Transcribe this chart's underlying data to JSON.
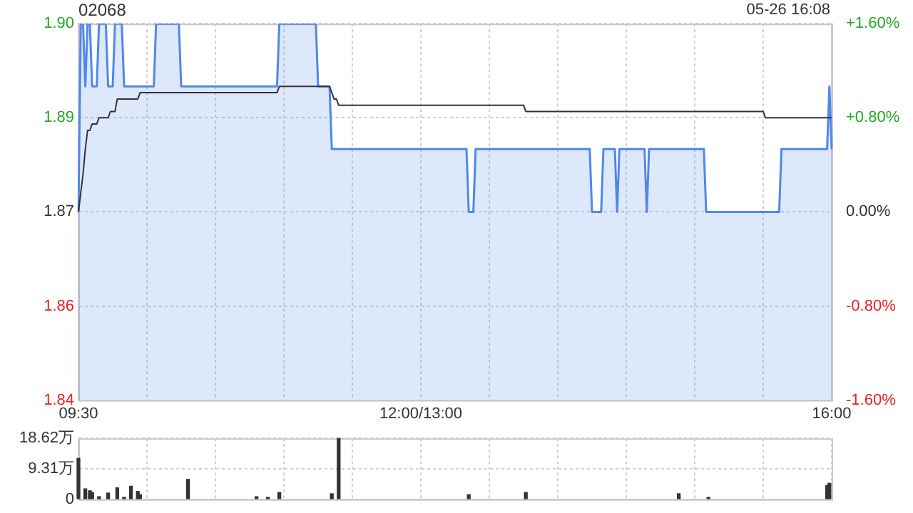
{
  "chart_data": [
    {
      "type": "area",
      "title": "02068",
      "subtitle": "05-26 16:08",
      "categories": [
        "09:30",
        null,
        null,
        null,
        null,
        null,
        null,
        null,
        null,
        null,
        null,
        null,
        null,
        null,
        null,
        null,
        null,
        null,
        null,
        null,
        null,
        null,
        null,
        null,
        null,
        null,
        null,
        null,
        null,
        null,
        null,
        null,
        null,
        null,
        null,
        null,
        null,
        null,
        null,
        null,
        null,
        null,
        null,
        null,
        null,
        null,
        null,
        null,
        null,
        null,
        null,
        null,
        null,
        null,
        null,
        null,
        null,
        null,
        null,
        null,
        null,
        null,
        null,
        null,
        null,
        null,
        null,
        null,
        null,
        null,
        null,
        null,
        null,
        null,
        null,
        null,
        null,
        null,
        null,
        null,
        null,
        null,
        null,
        null,
        null,
        null,
        null,
        null,
        null,
        null,
        null,
        null,
        null,
        null,
        null,
        null,
        null,
        null,
        null,
        null,
        null,
        null,
        null,
        null,
        null,
        null,
        null,
        null,
        null,
        null,
        null,
        null,
        null,
        null,
        null,
        null,
        null,
        null,
        null,
        null,
        null,
        null,
        null,
        null,
        null,
        null,
        null,
        null,
        null,
        null,
        null,
        null,
        null,
        null,
        null,
        null,
        null,
        null,
        null,
        null,
        null,
        null,
        null,
        null,
        null,
        null,
        null,
        null,
        null,
        null,
        "12:00/13:00",
        null,
        null,
        null,
        null,
        null,
        null,
        null,
        null,
        null,
        null,
        null,
        null,
        null,
        null,
        null,
        null,
        null,
        null,
        null,
        null,
        null,
        null,
        null,
        null,
        null,
        null,
        null,
        null,
        null,
        null,
        null,
        null,
        null,
        null,
        null,
        null,
        null,
        null,
        null,
        null,
        null,
        null,
        null,
        null,
        null,
        null,
        null,
        null,
        null,
        null,
        null,
        null,
        null,
        null,
        null,
        null,
        null,
        null,
        null,
        null,
        null,
        null,
        null,
        null,
        null,
        null,
        null,
        null,
        null,
        null,
        null,
        null,
        null,
        null,
        null,
        null,
        null,
        null,
        null,
        null,
        null,
        null,
        null,
        null,
        null,
        null,
        null,
        null,
        null,
        null,
        null,
        null,
        null,
        null,
        null,
        null,
        null,
        null,
        null,
        null,
        null,
        null,
        null,
        null,
        null,
        null,
        null,
        null,
        null,
        null,
        null,
        null,
        null,
        null,
        null,
        null,
        null,
        null,
        null,
        null,
        null,
        null,
        null,
        null,
        null,
        null,
        null,
        null,
        null,
        null,
        null,
        null,
        null,
        null,
        null,
        null,
        null,
        null,
        null,
        null,
        null,
        null,
        null,
        null,
        null,
        null,
        null,
        null,
        null,
        null,
        null,
        null,
        null,
        null,
        null,
        null,
        null,
        null,
        null,
        null,
        null,
        null,
        null,
        null,
        null,
        null,
        null,
        null,
        null,
        null,
        null,
        null,
        null,
        null,
        null,
        null,
        null,
        null,
        null,
        "16:00"
      ],
      "ylim": [
        1.84,
        1.9
      ],
      "yticks": [
        {
          "value": 1.84,
          "label": "1.84"
        },
        {
          "value": 1.855,
          "label": "1.86"
        },
        {
          "value": 1.87,
          "label": "1.87"
        },
        {
          "value": 1.885,
          "label": "1.89"
        },
        {
          "value": 1.9,
          "label": "1.90"
        }
      ],
      "y2lim": [
        -1.6,
        1.6
      ],
      "y2ticks": [
        {
          "value": -1.6,
          "label": "-1.60%"
        },
        {
          "value": -0.8,
          "label": "-0.80%"
        },
        {
          "value": 0,
          "label": "0.00%"
        },
        {
          "value": 0.8,
          "label": "+0.80%"
        },
        {
          "value": 1.6,
          "label": "+1.60%"
        }
      ],
      "grid": true,
      "legend": false,
      "marker": "none",
      "series": [
        {
          "color": "#4f87ec",
          "values": [
            1.87,
            1.9,
            1.9,
            1.89,
            1.9,
            1.9,
            1.89,
            1.89,
            1.89,
            1.9,
            1.9,
            1.9,
            1.9,
            1.89,
            1.89,
            1.89,
            1.9,
            1.9,
            1.9,
            1.9,
            1.89,
            1.89,
            1.89,
            1.89,
            1.89,
            1.89,
            1.89,
            1.89,
            1.89,
            1.89,
            1.89,
            1.89,
            1.89,
            1.89,
            1.9,
            1.9,
            1.9,
            1.9,
            1.9,
            1.9,
            1.9,
            1.9,
            1.9,
            1.9,
            1.9,
            1.89,
            1.89,
            1.89,
            1.89,
            1.89,
            1.89,
            1.89,
            1.89,
            1.89,
            1.89,
            1.89,
            1.89,
            1.89,
            1.89,
            1.89,
            1.89,
            1.89,
            1.89,
            1.89,
            1.89,
            1.89,
            1.89,
            1.89,
            1.89,
            1.89,
            1.89,
            1.89,
            1.89,
            1.89,
            1.89,
            1.89,
            1.89,
            1.89,
            1.89,
            1.89,
            1.89,
            1.89,
            1.89,
            1.89,
            1.89,
            1.89,
            1.89,
            1.89,
            1.9,
            1.9,
            1.9,
            1.9,
            1.9,
            1.9,
            1.9,
            1.9,
            1.9,
            1.9,
            1.9,
            1.9,
            1.9,
            1.9,
            1.9,
            1.9,
            1.9,
            1.89,
            1.89,
            1.89,
            1.89,
            1.89,
            1.89,
            1.88,
            1.88,
            1.88,
            1.88,
            1.88,
            1.88,
            1.88,
            1.88,
            1.88,
            1.88,
            1.88,
            1.88,
            1.88,
            1.88,
            1.88,
            1.88,
            1.88,
            1.88,
            1.88,
            1.88,
            1.88,
            1.88,
            1.88,
            1.88,
            1.88,
            1.88,
            1.88,
            1.88,
            1.88,
            1.88,
            1.88,
            1.88,
            1.88,
            1.88,
            1.88,
            1.88,
            1.88,
            1.88,
            1.88,
            1.88,
            1.88,
            1.88,
            1.88,
            1.88,
            1.88,
            1.88,
            1.88,
            1.88,
            1.88,
            1.88,
            1.88,
            1.88,
            1.88,
            1.88,
            1.88,
            1.88,
            1.88,
            1.88,
            1.88,
            1.88,
            1.87,
            1.87,
            1.87,
            1.88,
            1.88,
            1.88,
            1.88,
            1.88,
            1.88,
            1.88,
            1.88,
            1.88,
            1.88,
            1.88,
            1.88,
            1.88,
            1.88,
            1.88,
            1.88,
            1.88,
            1.88,
            1.88,
            1.88,
            1.88,
            1.88,
            1.88,
            1.88,
            1.88,
            1.88,
            1.88,
            1.88,
            1.88,
            1.88,
            1.88,
            1.88,
            1.88,
            1.88,
            1.88,
            1.88,
            1.88,
            1.88,
            1.88,
            1.88,
            1.88,
            1.88,
            1.88,
            1.88,
            1.88,
            1.88,
            1.88,
            1.88,
            1.88,
            1.88,
            1.88,
            1.87,
            1.87,
            1.87,
            1.87,
            1.87,
            1.88,
            1.88,
            1.88,
            1.88,
            1.88,
            1.88,
            1.87,
            1.88,
            1.88,
            1.88,
            1.88,
            1.88,
            1.88,
            1.88,
            1.88,
            1.88,
            1.88,
            1.88,
            1.88,
            1.87,
            1.88,
            1.88,
            1.88,
            1.88,
            1.88,
            1.88,
            1.88,
            1.88,
            1.88,
            1.88,
            1.88,
            1.88,
            1.88,
            1.88,
            1.88,
            1.88,
            1.88,
            1.88,
            1.88,
            1.88,
            1.88,
            1.88,
            1.88,
            1.88,
            1.88,
            1.87,
            1.87,
            1.87,
            1.87,
            1.87,
            1.87,
            1.87,
            1.87,
            1.87,
            1.87,
            1.87,
            1.87,
            1.87,
            1.87,
            1.87,
            1.87,
            1.87,
            1.87,
            1.87,
            1.87,
            1.87,
            1.87,
            1.87,
            1.87,
            1.87,
            1.87,
            1.87,
            1.87,
            1.87,
            1.87,
            1.87,
            1.87,
            1.87,
            1.88,
            1.88,
            1.88,
            1.88,
            1.88,
            1.88,
            1.88,
            1.88,
            1.88,
            1.88,
            1.88,
            1.88,
            1.88,
            1.88,
            1.88,
            1.88,
            1.88,
            1.88,
            1.88,
            1.88,
            1.88,
            1.89,
            1.88
          ]
        },
        {
          "type": "line",
          "color": "#333333",
          "values": [
            1.87,
            1.873,
            1.876,
            1.88,
            1.883,
            1.883,
            1.884,
            1.884,
            1.884,
            1.885,
            1.885,
            1.885,
            1.885,
            1.885,
            1.886,
            1.886,
            1.886,
            1.888,
            1.888,
            1.888,
            1.888,
            1.888,
            1.888,
            1.888,
            1.888,
            1.888,
            1.888,
            1.889,
            1.889,
            1.889,
            1.889,
            1.889,
            1.889,
            1.889,
            1.889,
            1.889,
            1.889,
            1.889,
            1.889,
            1.889,
            1.889,
            1.889,
            1.889,
            1.889,
            1.889,
            1.889,
            1.889,
            1.889,
            1.889,
            1.889,
            1.889,
            1.889,
            1.889,
            1.889,
            1.889,
            1.889,
            1.889,
            1.889,
            1.889,
            1.889,
            1.889,
            1.889,
            1.889,
            1.889,
            1.889,
            1.889,
            1.889,
            1.889,
            1.889,
            1.889,
            1.889,
            1.889,
            1.889,
            1.889,
            1.889,
            1.889,
            1.889,
            1.889,
            1.889,
            1.889,
            1.889,
            1.889,
            1.889,
            1.889,
            1.889,
            1.889,
            1.889,
            1.889,
            1.89,
            1.89,
            1.89,
            1.89,
            1.89,
            1.89,
            1.89,
            1.89,
            1.89,
            1.89,
            1.89,
            1.89,
            1.89,
            1.89,
            1.89,
            1.89,
            1.89,
            1.89,
            1.89,
            1.89,
            1.89,
            1.89,
            1.89,
            1.889,
            1.888,
            1.888,
            1.887,
            1.887,
            1.887,
            1.887,
            1.887,
            1.887,
            1.887,
            1.887,
            1.887,
            1.887,
            1.887,
            1.887,
            1.887,
            1.887,
            1.887,
            1.887,
            1.887,
            1.887,
            1.887,
            1.887,
            1.887,
            1.887,
            1.887,
            1.887,
            1.887,
            1.887,
            1.887,
            1.887,
            1.887,
            1.887,
            1.887,
            1.887,
            1.887,
            1.887,
            1.887,
            1.887,
            1.887,
            1.887,
            1.887,
            1.887,
            1.887,
            1.887,
            1.887,
            1.887,
            1.887,
            1.887,
            1.887,
            1.887,
            1.887,
            1.887,
            1.887,
            1.887,
            1.887,
            1.887,
            1.887,
            1.887,
            1.887,
            1.887,
            1.887,
            1.887,
            1.887,
            1.887,
            1.887,
            1.887,
            1.887,
            1.887,
            1.887,
            1.887,
            1.887,
            1.887,
            1.887,
            1.887,
            1.887,
            1.887,
            1.887,
            1.887,
            1.887,
            1.887,
            1.887,
            1.887,
            1.887,
            1.887,
            1.886,
            1.886,
            1.886,
            1.886,
            1.886,
            1.886,
            1.886,
            1.886,
            1.886,
            1.886,
            1.886,
            1.886,
            1.886,
            1.886,
            1.886,
            1.886,
            1.886,
            1.886,
            1.886,
            1.886,
            1.886,
            1.886,
            1.886,
            1.886,
            1.886,
            1.886,
            1.886,
            1.886,
            1.886,
            1.886,
            1.886,
            1.886,
            1.886,
            1.886,
            1.886,
            1.886,
            1.886,
            1.886,
            1.886,
            1.886,
            1.886,
            1.886,
            1.886,
            1.886,
            1.886,
            1.886,
            1.886,
            1.886,
            1.886,
            1.886,
            1.886,
            1.886,
            1.886,
            1.886,
            1.886,
            1.886,
            1.886,
            1.886,
            1.886,
            1.886,
            1.886,
            1.886,
            1.886,
            1.886,
            1.886,
            1.886,
            1.886,
            1.886,
            1.886,
            1.886,
            1.886,
            1.886,
            1.886,
            1.886,
            1.886,
            1.886,
            1.886,
            1.886,
            1.886,
            1.886,
            1.886,
            1.886,
            1.886,
            1.886,
            1.886,
            1.886,
            1.886,
            1.886,
            1.886,
            1.886,
            1.886,
            1.886,
            1.886,
            1.886,
            1.886,
            1.886,
            1.886,
            1.886,
            1.886,
            1.886,
            1.886,
            1.886,
            1.886,
            1.886,
            1.886,
            1.885,
            1.885,
            1.885,
            1.885,
            1.885,
            1.885,
            1.885,
            1.885,
            1.885,
            1.885,
            1.885,
            1.885,
            1.885,
            1.885,
            1.885,
            1.885,
            1.885,
            1.885,
            1.885,
            1.885,
            1.885,
            1.885,
            1.885,
            1.885,
            1.885,
            1.885,
            1.885,
            1.885,
            1.885,
            1.885
          ]
        }
      ]
    },
    {
      "type": "bar",
      "tick_labels": "y",
      "categories": [
        null,
        null,
        null,
        null,
        null,
        null,
        null,
        null,
        null,
        null,
        null,
        null,
        null,
        null,
        null,
        null,
        null,
        null,
        null,
        null,
        null,
        null,
        null,
        null,
        null,
        null,
        null,
        null,
        null,
        null,
        null,
        null,
        null,
        null,
        null,
        null,
        null,
        null,
        null,
        null,
        null,
        null,
        null,
        null,
        null,
        null,
        null,
        null,
        null,
        null,
        null,
        null,
        null,
        null,
        null,
        null,
        null,
        null,
        null,
        null,
        null,
        null,
        null,
        null,
        null,
        null,
        null,
        null,
        null,
        null,
        null,
        null,
        null,
        null,
        null,
        null,
        null,
        null,
        null,
        null,
        null,
        null,
        null,
        null,
        null,
        null,
        null,
        null,
        null,
        null,
        null,
        null,
        null,
        null,
        null,
        null,
        null,
        null,
        null,
        null,
        null,
        null,
        null,
        null,
        null,
        null,
        null,
        null,
        null,
        null,
        null,
        null,
        null,
        null,
        null,
        null,
        null,
        null,
        null,
        null,
        null,
        null,
        null,
        null,
        null,
        null,
        null,
        null,
        null,
        null,
        null,
        null,
        null,
        null,
        null,
        null,
        null,
        null,
        null,
        null,
        null,
        null,
        null,
        null,
        null,
        null,
        null,
        null,
        null,
        null,
        null,
        null,
        null,
        null,
        null,
        null,
        null,
        null,
        null,
        null,
        null,
        null,
        null,
        null,
        null,
        null,
        null,
        null,
        null,
        null,
        null,
        null,
        null,
        null,
        null,
        null,
        null,
        null,
        null,
        null,
        null,
        null,
        null,
        null,
        null,
        null,
        null,
        null,
        null,
        null,
        null,
        null,
        null,
        null,
        null,
        null,
        null,
        null,
        null,
        null,
        null,
        null,
        null,
        null,
        null,
        null,
        null,
        null,
        null,
        null,
        null,
        null,
        null,
        null,
        null,
        null,
        null,
        null,
        null,
        null,
        null,
        null,
        null,
        null,
        null,
        null,
        null,
        null,
        null,
        null,
        null,
        null,
        null,
        null,
        null,
        null,
        null,
        null,
        null,
        null,
        null,
        null,
        null,
        null,
        null,
        null,
        null,
        null,
        null,
        null,
        null,
        null,
        null,
        null,
        null,
        null,
        null,
        null,
        null,
        null,
        null,
        null,
        null,
        null,
        null,
        null,
        null,
        null,
        null,
        null,
        null,
        null,
        null,
        null,
        null,
        null,
        null,
        null,
        null,
        null,
        null,
        null,
        null,
        null,
        null,
        null,
        null,
        null,
        null,
        null,
        null,
        null,
        null,
        null,
        null,
        null,
        null,
        null,
        null,
        null,
        null,
        null,
        null,
        null,
        null,
        null,
        null,
        null,
        null,
        null,
        null,
        null,
        null,
        null,
        null,
        null,
        null,
        null,
        null,
        null,
        null,
        null,
        null,
        null,
        null,
        null,
        null,
        null,
        null,
        null,
        null
      ],
      "ylim": [
        0,
        18.62
      ],
      "yticks": [
        {
          "value": 0,
          "label": "0"
        },
        {
          "value": 9.31,
          "label": "9.31万"
        },
        {
          "value": 18.62,
          "label": "18.62万"
        }
      ],
      "grid": true,
      "legend": false,
      "series": [
        {
          "color": "#333333",
          "values": [
            12.5,
            null,
            null,
            3.2,
            null,
            2.6,
            2.1,
            null,
            null,
            0.8,
            null,
            null,
            null,
            1.9,
            null,
            null,
            null,
            3.5,
            null,
            null,
            0.6,
            null,
            null,
            4,
            null,
            null,
            2.4,
            1.4,
            null,
            null,
            null,
            null,
            null,
            null,
            null,
            null,
            null,
            null,
            null,
            null,
            null,
            null,
            null,
            null,
            null,
            null,
            null,
            null,
            6.1,
            null,
            null,
            null,
            null,
            null,
            null,
            null,
            null,
            null,
            null,
            null,
            null,
            null,
            null,
            null,
            null,
            null,
            null,
            null,
            null,
            null,
            null,
            null,
            null,
            null,
            null,
            null,
            null,
            null,
            0.8,
            null,
            null,
            null,
            null,
            0.6,
            null,
            null,
            null,
            null,
            2.1,
            null,
            null,
            null,
            null,
            null,
            null,
            null,
            null,
            null,
            null,
            null,
            null,
            null,
            null,
            null,
            null,
            null,
            null,
            null,
            null,
            null,
            null,
            1.7,
            null,
            null,
            18.6,
            null,
            null,
            null,
            null,
            null,
            null,
            null,
            null,
            null,
            null,
            null,
            null,
            null,
            null,
            null,
            null,
            null,
            null,
            null,
            null,
            null,
            null,
            null,
            null,
            null,
            null,
            null,
            null,
            null,
            null,
            null,
            null,
            null,
            null,
            null,
            null,
            null,
            null,
            null,
            null,
            null,
            null,
            null,
            null,
            null,
            null,
            null,
            null,
            null,
            null,
            null,
            null,
            null,
            null,
            null,
            null,
            1.4,
            null,
            null,
            null,
            null,
            null,
            null,
            null,
            null,
            null,
            null,
            null,
            null,
            null,
            null,
            null,
            null,
            null,
            null,
            null,
            null,
            null,
            null,
            null,
            null,
            2.1,
            null,
            null,
            null,
            null,
            null,
            null,
            null,
            null,
            null,
            null,
            null,
            null,
            null,
            null,
            null,
            null,
            null,
            null,
            null,
            null,
            null,
            null,
            null,
            null,
            null,
            null,
            null,
            null,
            null,
            null,
            null,
            null,
            null,
            null,
            null,
            null,
            null,
            null,
            null,
            null,
            null,
            null,
            null,
            null,
            null,
            null,
            null,
            null,
            null,
            null,
            null,
            null,
            null,
            null,
            null,
            null,
            null,
            null,
            null,
            null,
            null,
            null,
            null,
            null,
            null,
            null,
            1.7,
            null,
            null,
            null,
            null,
            null,
            null,
            null,
            null,
            null,
            null,
            null,
            null,
            0.6,
            null,
            null,
            null,
            null,
            null,
            null,
            null,
            null,
            null,
            null,
            null,
            null,
            null,
            null,
            null,
            null,
            null,
            null,
            null,
            null,
            null,
            null,
            null,
            null,
            null,
            null,
            null,
            null,
            null,
            null,
            null,
            null,
            null,
            null,
            null,
            null,
            null,
            null,
            null,
            null,
            null,
            null,
            null,
            null,
            null,
            null,
            null,
            null,
            null,
            null,
            null,
            4.2,
            4.9,
            null
          ]
        }
      ]
    }
  ]
}
